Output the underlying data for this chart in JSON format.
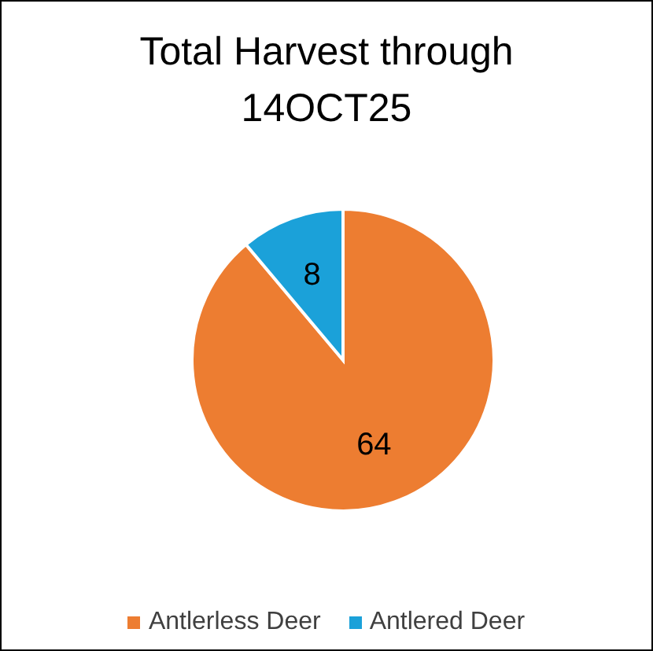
{
  "chart_data": {
    "type": "pie",
    "title": "Total Harvest through 14OCT25",
    "categories": [
      "Antlerless Deer",
      "Antlered Deer"
    ],
    "values": [
      64,
      8
    ],
    "colors": [
      "#ed7d31",
      "#1ba1d9"
    ],
    "data_labels": true,
    "legend": "bottom"
  }
}
